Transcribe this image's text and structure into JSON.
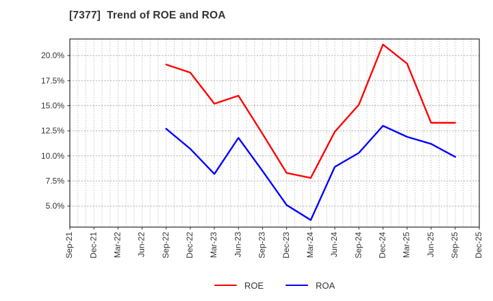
{
  "chart_data": {
    "type": "line",
    "title": "[7377]  Trend of ROE and ROA",
    "xlabel": "",
    "ylabel": "",
    "categories": [
      "Sep-21",
      "Dec-21",
      "Mar-22",
      "Jun-22",
      "Sep-22",
      "Dec-22",
      "Mar-23",
      "Jun-23",
      "Sep-23",
      "Dec-23",
      "Mar-24",
      "Jun-24",
      "Sep-24",
      "Dec-24",
      "Mar-25",
      "Jun-25",
      "Sep-25",
      "Dec-25"
    ],
    "series": [
      {
        "name": "ROE",
        "color": "#ff0000",
        "values": [
          null,
          null,
          null,
          null,
          19.1,
          18.3,
          15.2,
          16.0,
          12.2,
          8.3,
          7.8,
          12.4,
          15.1,
          21.1,
          19.2,
          13.3,
          13.3,
          null
        ]
      },
      {
        "name": "ROA",
        "color": "#0000ff",
        "values": [
          null,
          null,
          null,
          null,
          12.7,
          10.7,
          8.2,
          11.8,
          8.5,
          5.1,
          3.6,
          8.9,
          10.3,
          13.0,
          11.9,
          11.2,
          9.9,
          null
        ]
      }
    ],
    "y_ticks": [
      5,
      7.5,
      10,
      12.5,
      15,
      17.5,
      20
    ],
    "y_tick_labels": [
      "5.0%",
      "7.5%",
      "10.0%",
      "12.5%",
      "15.0%",
      "17.5%",
      "20.0%"
    ],
    "ylim": [
      2.9,
      21.65
    ],
    "grid": true,
    "legend_position": "bottom-center"
  },
  "style": {
    "axis_color": "#262626",
    "grid_color": "#a8a8a8",
    "tick_label_color": "#333333"
  }
}
